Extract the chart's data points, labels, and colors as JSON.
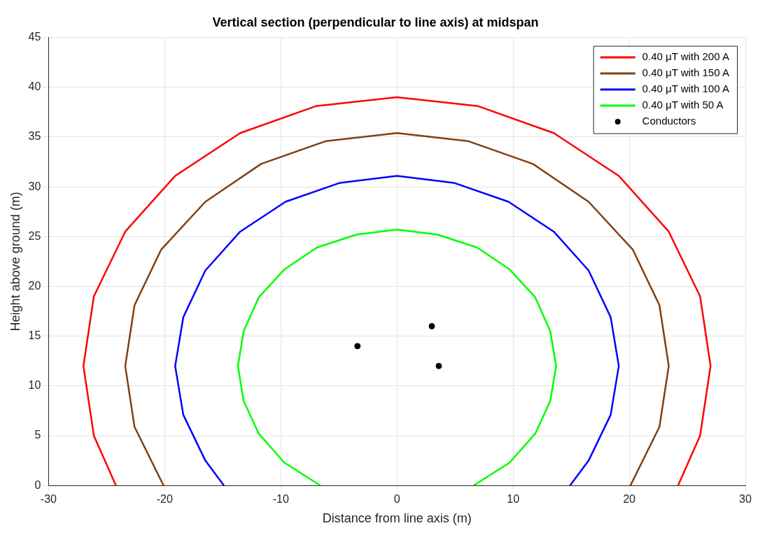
{
  "chart_data": {
    "type": "line",
    "title": "Vertical section (perpendicular to line axis) at midspan",
    "xlabel": "Distance from line axis (m)",
    "ylabel": "Height above ground (m)",
    "xlim": [
      -30,
      30
    ],
    "xticks": [
      -30,
      -20,
      -10,
      0,
      10,
      20,
      30
    ],
    "ylim": [
      0,
      45
    ],
    "yticks": [
      0,
      5,
      10,
      15,
      20,
      25,
      30,
      35,
      40,
      45
    ],
    "grid": true,
    "legend": "top right",
    "line_style": "solid",
    "series": [
      {
        "name": "0.40 μT with 200 A",
        "color": "#ff0000",
        "type": "line",
        "x": [
          -24.2,
          -26.1,
          -27,
          -26.1,
          -23.4,
          -19.1,
          -13.5,
          -7.0,
          0,
          7.0,
          13.5,
          19.1,
          23.4,
          26.1,
          27,
          26.1,
          24.2
        ],
        "values": [
          0,
          5.0,
          12,
          19.0,
          25.5,
          31.1,
          35.4,
          38.1,
          39,
          38.1,
          35.4,
          31.1,
          25.5,
          19.0,
          12,
          5.0,
          0
        ]
      },
      {
        "name": "0.40 μT with 150 A",
        "color": "#7f4010",
        "type": "line",
        "x": [
          -20.1,
          -22.6,
          -23.4,
          -22.6,
          -20.3,
          -16.5,
          -11.7,
          -6.1,
          0,
          6.1,
          11.7,
          16.5,
          20.3,
          22.6,
          23.4,
          22.6,
          20.1
        ],
        "values": [
          0,
          5.9,
          12,
          18.1,
          23.7,
          28.5,
          32.3,
          34.6,
          35.4,
          34.6,
          32.3,
          28.5,
          23.7,
          18.1,
          12,
          5.9,
          0
        ]
      },
      {
        "name": "0.40 μT with 100 A",
        "color": "#0000ff",
        "type": "line",
        "x": [
          -14.9,
          -16.5,
          -18.4,
          -19.1,
          -18.4,
          -16.5,
          -13.5,
          -9.6,
          -4.9,
          0,
          4.9,
          9.6,
          13.5,
          16.5,
          18.4,
          19.1,
          18.4,
          16.5,
          14.9
        ],
        "values": [
          0,
          2.5,
          7.1,
          12,
          16.9,
          21.6,
          25.5,
          28.5,
          30.4,
          31.1,
          30.4,
          28.5,
          25.5,
          21.6,
          16.9,
          12,
          7.1,
          2.5,
          0
        ]
      },
      {
        "name": "0.40 μT with 50 A",
        "color": "#00ff00",
        "type": "line",
        "x": [
          -6.6,
          -9.7,
          -11.9,
          -13.2,
          -13.7,
          -13.2,
          -11.9,
          -9.7,
          -6.9,
          -3.5,
          0,
          3.5,
          6.9,
          9.7,
          11.9,
          13.2,
          13.7,
          13.2,
          11.9,
          9.7,
          6.6
        ],
        "values": [
          0,
          2.3,
          5.2,
          8.5,
          12,
          15.5,
          18.9,
          21.7,
          23.9,
          25.2,
          25.7,
          25.2,
          23.9,
          21.7,
          18.9,
          15.5,
          12,
          8.5,
          5.2,
          2.3,
          0
        ]
      },
      {
        "name": "Conductors",
        "color": "#000000",
        "type": "scatter",
        "marker": "circle",
        "x": [
          -3.4,
          3,
          3.6
        ],
        "values": [
          14,
          16,
          12
        ]
      }
    ]
  }
}
